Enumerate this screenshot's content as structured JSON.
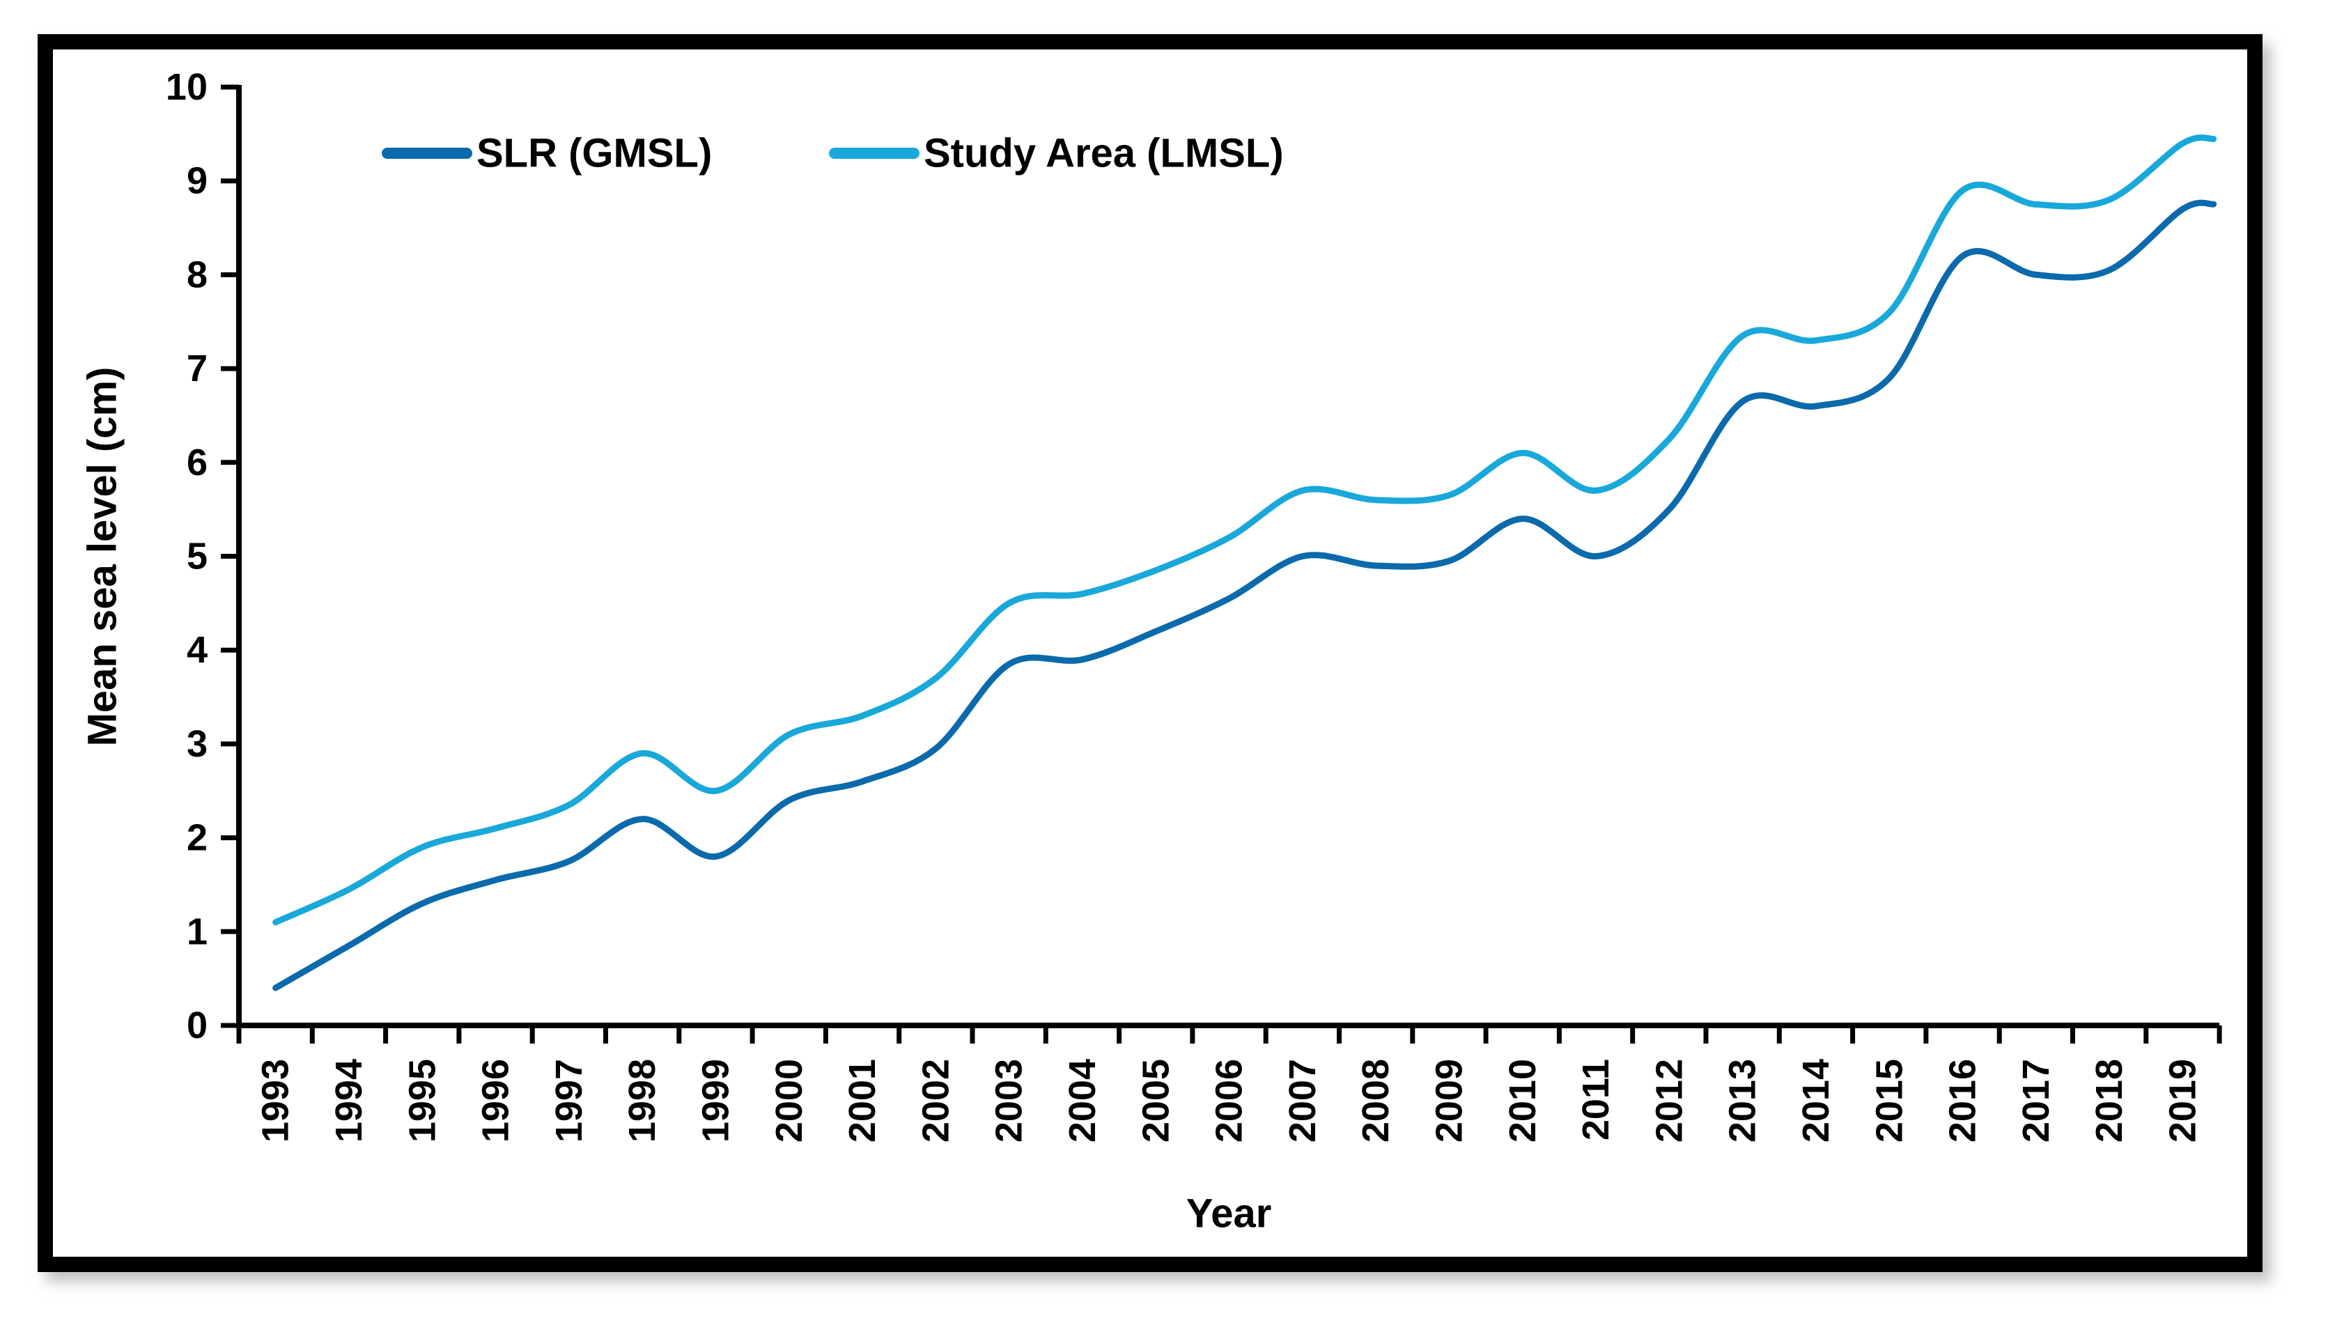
{
  "figure": {
    "background": "#ffffff",
    "frame_color": "#000000",
    "shadow_color": "#9a9a9a"
  },
  "chart_data": {
    "type": "line",
    "title": "",
    "xlabel": "Year",
    "ylabel": "Mean sea level (cm)",
    "x": [
      1993,
      1994,
      1995,
      1996,
      1997,
      1998,
      1999,
      2000,
      2001,
      2002,
      2003,
      2004,
      2005,
      2006,
      2007,
      2008,
      2009,
      2010,
      2011,
      2012,
      2013,
      2014,
      2015,
      2016,
      2017,
      2018,
      2019
    ],
    "series": [
      {
        "name": "SLR (GMSL)",
        "color": "#0a6aac",
        "values": [
          0.4,
          0.85,
          1.3,
          1.55,
          1.75,
          2.2,
          1.8,
          2.4,
          2.6,
          2.95,
          3.85,
          3.9,
          4.2,
          4.55,
          5.0,
          4.9,
          4.95,
          5.4,
          5.0,
          5.5,
          6.65,
          6.6,
          6.9,
          8.2,
          8.0,
          8.05,
          8.7
        ]
      },
      {
        "name": "Study Area (LMSL)",
        "color": "#18a8da",
        "values": [
          1.1,
          1.45,
          1.9,
          2.1,
          2.35,
          2.9,
          2.5,
          3.1,
          3.3,
          3.7,
          4.5,
          4.6,
          4.85,
          5.2,
          5.7,
          5.6,
          5.65,
          6.1,
          5.7,
          6.25,
          7.35,
          7.3,
          7.6,
          8.9,
          8.75,
          8.8,
          9.4
        ]
      }
    ],
    "ylim": [
      0,
      10
    ],
    "yticks": [
      0,
      1,
      2,
      3,
      4,
      5,
      6,
      7,
      8,
      9,
      10
    ],
    "grid": false,
    "legend_position": "top-left-inside",
    "tick_direction": "out"
  }
}
